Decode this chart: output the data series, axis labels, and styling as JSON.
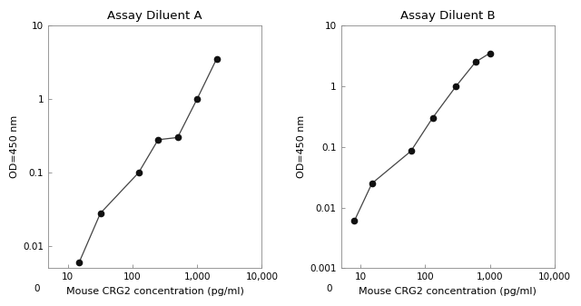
{
  "chart_a": {
    "title": "Assay Diluent A",
    "x": [
      15,
      32,
      125,
      250,
      500,
      1000,
      2000
    ],
    "y": [
      0.006,
      0.028,
      0.1,
      0.28,
      0.3,
      1.0,
      3.5
    ],
    "xlim": [
      5,
      10000
    ],
    "ylim": [
      0.005,
      10
    ],
    "xticks": [
      10,
      100,
      1000,
      10000
    ],
    "xtick_labels": [
      "10",
      "100",
      "1,000",
      "10,000"
    ],
    "yticks": [
      0.01,
      0.1,
      1,
      10
    ],
    "ytick_labels": [
      "0.01",
      "0.1",
      "1",
      "10"
    ],
    "xlabel": "Mouse CRG2 concentration (pg/ml)",
    "ylabel": "OD=450 nm"
  },
  "chart_b": {
    "title": "Assay Diluent B",
    "x": [
      8,
      15,
      60,
      130,
      300,
      600,
      1000
    ],
    "y": [
      0.006,
      0.025,
      0.085,
      0.3,
      1.0,
      2.5,
      3.5
    ],
    "xlim": [
      5,
      10000
    ],
    "ylim": [
      0.001,
      10
    ],
    "xticks": [
      10,
      100,
      1000,
      10000
    ],
    "xtick_labels": [
      "10",
      "100",
      "1,000",
      "10,000"
    ],
    "yticks": [
      0.001,
      0.01,
      0.1,
      1,
      10
    ],
    "ytick_labels": [
      "0.001",
      "0.01",
      "0.1",
      "1",
      "10"
    ],
    "xlabel": "Mouse CRG2 concentration (pg/ml)",
    "ylabel": "OD=450 nm"
  },
  "line_color": "#444444",
  "marker_color": "#111111",
  "marker_size": 4.5,
  "line_width": 0.9,
  "bg_color": "#ffffff",
  "title_fontsize": 9.5,
  "label_fontsize": 8,
  "tick_fontsize": 7.5
}
